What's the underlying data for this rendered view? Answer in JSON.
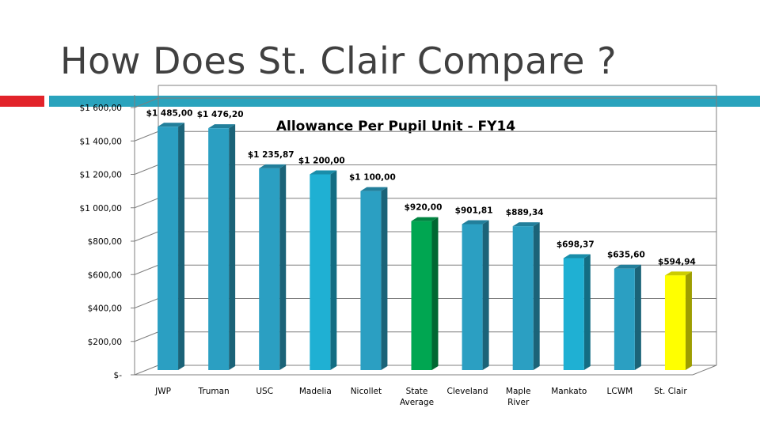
{
  "slide": {
    "title": "How Does St. Clair Compare ?"
  },
  "colors": {
    "accent_red": "#e2232a",
    "accent_teal": "#2aa3bd",
    "title_text": "#404040"
  },
  "chart_data": {
    "type": "bar",
    "title": "Allowance Per Pupil Unit - FY14",
    "xlabel": "",
    "ylabel": "",
    "ylim": [
      0,
      1600
    ],
    "yticks": [
      0,
      200,
      400,
      600,
      800,
      1000,
      1200,
      1400,
      1600
    ],
    "ytick_labels": [
      "$-",
      "$200,00",
      "$400,00",
      "$600,00",
      "$800,00",
      "$1 000,00",
      "$1 200,00",
      "$1 400,00",
      "$1 600,00"
    ],
    "grid": true,
    "legend": "none",
    "style": "3d-columns",
    "categories": [
      "JWP",
      "Truman",
      "USC",
      "Madelia",
      "Nicollet",
      "State Average",
      "Cleveland",
      "Maple River",
      "Mankato",
      "LCWM",
      "St. Clair"
    ],
    "category_lines": [
      [
        "JWP"
      ],
      [
        "Truman"
      ],
      [
        "USC"
      ],
      [
        "Madelia"
      ],
      [
        "Nicollet"
      ],
      [
        "State",
        "Average"
      ],
      [
        "Cleveland"
      ],
      [
        "Maple",
        "River"
      ],
      [
        "Mankato"
      ],
      [
        "LCWM"
      ],
      [
        "St. Clair"
      ]
    ],
    "values": [
      1485.0,
      1476.2,
      1235.87,
      1200.0,
      1100.0,
      920.0,
      901.81,
      889.34,
      698.37,
      635.6,
      594.94
    ],
    "data_labels": [
      "$1 485,00",
      "$1 476,20",
      "$1 235,87",
      "$1 200,00",
      "$1 100,00",
      "$920,00",
      "$901,81",
      "$889,34",
      "$698,37",
      "$635,60",
      "$594,94"
    ],
    "bar_colors": [
      "#2b9fc2",
      "#2b9fc2",
      "#2b9fc2",
      "#1fb0d3",
      "#2b9fc2",
      "#00a651",
      "#2b9fc2",
      "#2b9fc2",
      "#1fb0d3",
      "#2b9fc2",
      "#ffff00"
    ]
  }
}
